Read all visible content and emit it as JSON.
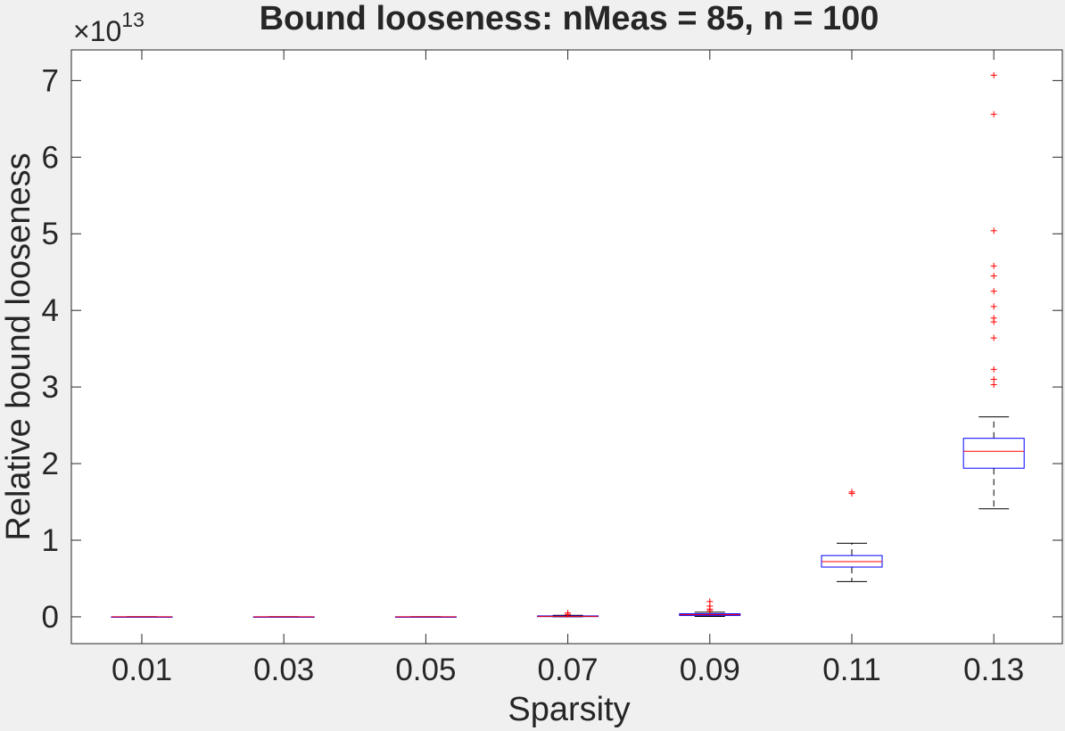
{
  "chart_data": {
    "type": "box",
    "title": "Bound looseness: nMeas = 85, n = 100",
    "xlabel": "Sparsity",
    "ylabel": "Relative bound looseness",
    "y_exponent_label": {
      "base": "×10",
      "exponent": "13"
    },
    "categories": [
      "0.01",
      "0.03",
      "0.05",
      "0.07",
      "0.09",
      "0.11",
      "0.13"
    ],
    "yticks": [
      "0",
      "1",
      "2",
      "3",
      "4",
      "5",
      "6",
      "7"
    ],
    "ylim": [
      -0.35,
      7.4
    ],
    "y_scale_factor": 10000000000000.0,
    "grid": false,
    "colors": {
      "background": "#f0f0f0",
      "axes": "#ffffff",
      "box": "#0000ff",
      "median": "#ff0000",
      "whisker": "#000000",
      "outlier": "#ff0000",
      "text": "#262626"
    },
    "boxes": [
      {
        "category": "0.01",
        "q1": 0.0,
        "median": 0.0,
        "q3": 0.0,
        "whisker_low": 0.0,
        "whisker_high": 0.0,
        "outliers": []
      },
      {
        "category": "0.03",
        "q1": 0.0,
        "median": 0.0,
        "q3": 0.0,
        "whisker_low": 0.0,
        "whisker_high": 0.0,
        "outliers": []
      },
      {
        "category": "0.05",
        "q1": 0.0,
        "median": 0.0,
        "q3": 0.0,
        "whisker_low": 0.0,
        "whisker_high": 0.0,
        "outliers": []
      },
      {
        "category": "0.07",
        "q1": 0.003,
        "median": 0.007,
        "q3": 0.012,
        "whisker_low": 0.0,
        "whisker_high": 0.02,
        "outliers": [
          0.03,
          0.05
        ]
      },
      {
        "category": "0.09",
        "q1": 0.018,
        "median": 0.028,
        "q3": 0.04,
        "whisker_low": 0.005,
        "whisker_high": 0.06,
        "outliers": [
          0.08,
          0.1,
          0.14,
          0.2
        ]
      },
      {
        "category": "0.11",
        "q1": 0.65,
        "median": 0.72,
        "q3": 0.8,
        "whisker_low": 0.46,
        "whisker_high": 0.96,
        "outliers": [
          1.61,
          1.63
        ]
      },
      {
        "category": "0.13",
        "q1": 1.94,
        "median": 2.16,
        "q3": 2.33,
        "whisker_low": 1.41,
        "whisker_high": 2.61,
        "outliers": [
          3.03,
          3.1,
          3.23,
          3.64,
          3.85,
          3.9,
          4.05,
          4.25,
          4.45,
          4.58,
          5.04,
          6.56,
          7.07
        ]
      }
    ]
  }
}
